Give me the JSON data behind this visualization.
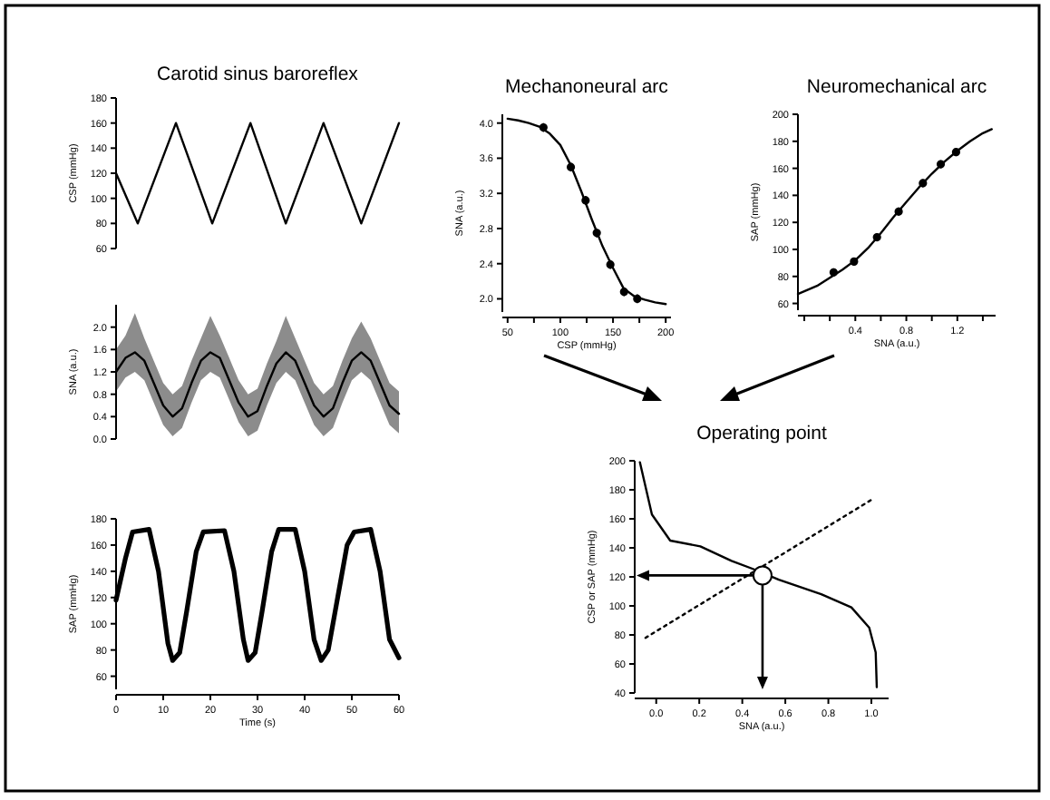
{
  "chart_data": [
    {
      "type": "line",
      "title": "Carotid sinus baroreflex",
      "ylabel": "CSP (mmHg)",
      "xlim": [
        0,
        60
      ],
      "ylim": [
        60,
        180
      ],
      "yticks": [
        60,
        80,
        100,
        120,
        140,
        160,
        180
      ],
      "tick_labels": "y",
      "series": [
        {
          "color": "#000000",
          "x": [
            0,
            4.6,
            12.7,
            20.4,
            28.5,
            36,
            44,
            52,
            60
          ],
          "values": [
            120,
            80,
            160,
            80,
            160,
            80,
            160,
            80,
            160
          ]
        }
      ]
    },
    {
      "type": "line",
      "ylabel": "SNA (a.u.)",
      "xlim": [
        0,
        60
      ],
      "ylim": [
        0,
        2.4
      ],
      "yticks": [
        {
          "value": 0,
          "label": "0.0"
        },
        0.4,
        0.8,
        1.2,
        1.6,
        {
          "value": 2,
          "label": "2.0"
        }
      ],
      "tick_labels": "y",
      "series": [
        {
          "color": "#000000",
          "x": [
            0,
            2,
            4,
            6,
            8,
            10,
            12,
            14,
            16,
            18,
            20,
            22,
            24,
            26,
            28,
            30,
            32,
            34,
            36,
            38,
            40,
            42,
            44,
            46,
            48,
            50,
            52,
            54,
            56,
            58,
            60
          ],
          "values": [
            1.2,
            1.45,
            1.55,
            1.4,
            1.0,
            0.6,
            0.4,
            0.55,
            1.0,
            1.4,
            1.55,
            1.45,
            1.05,
            0.65,
            0.4,
            0.5,
            0.95,
            1.35,
            1.55,
            1.4,
            1.0,
            0.6,
            0.4,
            0.55,
            1.0,
            1.4,
            1.55,
            1.4,
            1.0,
            0.6,
            0.45
          ],
          "lower": [
            0.85,
            1.1,
            1.2,
            1.05,
            0.65,
            0.25,
            0.05,
            0.2,
            0.65,
            1.05,
            1.2,
            1.1,
            0.7,
            0.3,
            0.05,
            0.15,
            0.6,
            1.0,
            1.2,
            1.05,
            0.65,
            0.25,
            0.05,
            0.2,
            0.65,
            1.05,
            1.2,
            1.05,
            0.65,
            0.25,
            0.1
          ],
          "upper": [
            1.6,
            1.85,
            2.25,
            1.8,
            1.4,
            1.0,
            0.8,
            0.95,
            1.4,
            1.8,
            2.2,
            1.85,
            1.45,
            1.05,
            0.8,
            0.9,
            1.35,
            1.75,
            2.2,
            1.8,
            1.4,
            1.0,
            0.8,
            0.95,
            1.4,
            1.8,
            2.1,
            1.8,
            1.4,
            1.0,
            0.85
          ]
        }
      ]
    },
    {
      "type": "line",
      "xlabel": "Time (s)",
      "xlim": [
        0,
        60
      ],
      "xticks": [
        0,
        10,
        20,
        30,
        40,
        50,
        60
      ],
      "ylabel": "SAP (mmHg)",
      "ylim": [
        50,
        180
      ],
      "yticks": [
        60,
        80,
        100,
        120,
        140,
        160,
        180
      ],
      "series": [
        {
          "color": "#000000",
          "x": [
            0,
            2,
            3.5,
            7,
            9,
            11,
            12,
            13.5,
            15,
            17,
            18.5,
            23,
            25,
            27,
            28,
            29.5,
            31,
            33,
            34.5,
            38,
            40,
            42,
            43.5,
            45,
            47,
            49,
            50.5,
            54,
            56,
            58,
            60
          ],
          "values": [
            118,
            150,
            170,
            172,
            140,
            85,
            72,
            78,
            110,
            155,
            170,
            171,
            140,
            88,
            72,
            78,
            110,
            155,
            172,
            172,
            140,
            88,
            72,
            80,
            120,
            160,
            170,
            172,
            140,
            88,
            74
          ]
        }
      ]
    },
    {
      "type": "line",
      "title": "Mechanoneural arc",
      "xlabel": "CSP (mmHg)",
      "ylabel": "SNA (a.u.)",
      "xlim": [
        45,
        205
      ],
      "xticks": [
        50,
        {
          "value": 75,
          "label": null
        },
        100,
        {
          "value": 125,
          "label": null
        },
        150,
        {
          "value": 175,
          "label": null
        },
        200
      ],
      "ylim": [
        1.85,
        4.1
      ],
      "yticks": [
        {
          "value": 2,
          "label": "2.0"
        },
        2.4,
        2.8,
        3.2,
        3.6,
        {
          "value": 4,
          "label": "4.0"
        }
      ],
      "series": [
        {
          "color": "#000000",
          "x": [
            50,
            60,
            70,
            80,
            90,
            100,
            110,
            120,
            130,
            140,
            150,
            160,
            170,
            180,
            190,
            200
          ],
          "values": [
            4.05,
            4.03,
            4.0,
            3.96,
            3.88,
            3.75,
            3.52,
            3.22,
            2.9,
            2.6,
            2.35,
            2.12,
            2.03,
            1.99,
            1.96,
            1.94
          ]
        },
        {
          "type": "scatter",
          "color": "#000000",
          "marker": "circle",
          "x": [
            84,
            110,
            124,
            134.6,
            147.5,
            160.5,
            173
          ],
          "values": [
            3.95,
            3.5,
            3.12,
            2.75,
            2.39,
            2.08,
            2.0
          ],
          "errors": [
            0.05,
            0.05,
            0.05,
            0.05,
            0.05,
            0.05,
            0.05
          ]
        }
      ]
    },
    {
      "type": "line",
      "title": "Neuromechanical arc",
      "xlabel": "SNA (a.u.)",
      "ylabel": "SAP (mmHg)",
      "xlim": [
        -0.05,
        1.5
      ],
      "xticks": [
        {
          "value": 0,
          "label": null
        },
        {
          "value": 0.2,
          "label": null
        },
        0.4,
        {
          "value": 0.6,
          "label": null
        },
        0.8,
        {
          "value": 1,
          "label": null
        },
        1.2,
        {
          "value": 1.4,
          "label": null
        }
      ],
      "ylim": [
        55,
        200
      ],
      "yticks": [
        60,
        80,
        100,
        120,
        140,
        160,
        180,
        200
      ],
      "series": [
        {
          "color": "#000000",
          "x": [
            -0.05,
            0.1,
            0.2,
            0.3,
            0.4,
            0.5,
            0.6,
            0.7,
            0.8,
            0.9,
            1.0,
            1.1,
            1.2,
            1.3,
            1.4,
            1.47
          ],
          "values": [
            67,
            73,
            79,
            85,
            92,
            101,
            112,
            124,
            135,
            146,
            156,
            165,
            173,
            180,
            186,
            189
          ]
        },
        {
          "type": "scatter",
          "color": "#000000",
          "marker": "circle",
          "x": [
            0.23,
            0.39,
            0.57,
            0.74,
            0.93,
            1.07,
            1.19
          ],
          "values": [
            83,
            91,
            109,
            128,
            149,
            163,
            172
          ],
          "errors": [
            3,
            3,
            3,
            3,
            3,
            3,
            3
          ],
          "xerrors": [
            0.02,
            0.02,
            0.02,
            0.02,
            0.02,
            0.02,
            0.02
          ]
        }
      ]
    },
    {
      "type": "line",
      "title": "Operating point",
      "xlabel": "SNA (a.u.)",
      "ylabel": "CSP or SAP (mmHg)",
      "xlim": [
        -0.1,
        1.08
      ],
      "xticks": [
        {
          "value": 0,
          "label": "0.0"
        },
        0.2,
        0.4,
        0.6,
        0.8,
        {
          "value": 1,
          "label": "1.0"
        }
      ],
      "ylim": [
        40,
        200
      ],
      "yticks": [
        40,
        60,
        80,
        100,
        120,
        140,
        160,
        180,
        200
      ],
      "series": [
        {
          "color": "#000000",
          "x": [
            -0.076,
            -0.02,
            0.065,
            0.205,
            0.35,
            0.458,
            0.57,
            0.767,
            0.907,
            0.99,
            1.02,
            1.025
          ],
          "values": [
            199,
            163,
            145,
            141,
            131,
            125,
            118,
            108,
            99,
            85,
            68,
            44
          ]
        },
        {
          "color": "#000000",
          "line_style": "dotted",
          "x": [
            -0.05,
            1.01
          ],
          "values": [
            78,
            174
          ]
        },
        {
          "type": "scatter",
          "color": "#000000",
          "marker": "circle",
          "x": [
            0.494
          ],
          "values": [
            121
          ]
        }
      ]
    }
  ]
}
